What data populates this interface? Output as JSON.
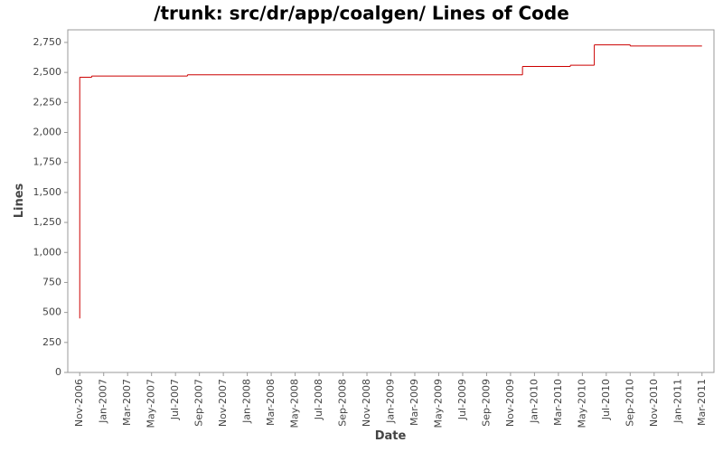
{
  "chart_data": {
    "type": "line",
    "step": "post",
    "color": "#cc0000",
    "title": "/trunk: src/dr/app/coalgen/ Lines of Code",
    "x_label": "Date",
    "y_label": "Lines",
    "x": [
      "2006-11",
      "2006-11",
      "2006-12",
      "2007-08",
      "2009-12",
      "2010-04",
      "2010-06",
      "2010-09",
      "2011-03"
    ],
    "values": [
      450,
      2460,
      2470,
      2480,
      2550,
      2560,
      2730,
      2720,
      2720
    ],
    "xlim": [
      "2006-10",
      "2011-04"
    ],
    "xticks": [
      {
        "value": "2006-11",
        "label": "Nov-2006"
      },
      {
        "value": "2007-01",
        "label": "Jan-2007"
      },
      {
        "value": "2007-03",
        "label": "Mar-2007"
      },
      {
        "value": "2007-05",
        "label": "May-2007"
      },
      {
        "value": "2007-07",
        "label": "Jul-2007"
      },
      {
        "value": "2007-09",
        "label": "Sep-2007"
      },
      {
        "value": "2007-11",
        "label": "Nov-2007"
      },
      {
        "value": "2008-01",
        "label": "Jan-2008"
      },
      {
        "value": "2008-03",
        "label": "Mar-2008"
      },
      {
        "value": "2008-05",
        "label": "May-2008"
      },
      {
        "value": "2008-07",
        "label": "Jul-2008"
      },
      {
        "value": "2008-09",
        "label": "Sep-2008"
      },
      {
        "value": "2008-11",
        "label": "Nov-2008"
      },
      {
        "value": "2009-01",
        "label": "Jan-2009"
      },
      {
        "value": "2009-03",
        "label": "Mar-2009"
      },
      {
        "value": "2009-05",
        "label": "May-2009"
      },
      {
        "value": "2009-07",
        "label": "Jul-2009"
      },
      {
        "value": "2009-09",
        "label": "Sep-2009"
      },
      {
        "value": "2009-11",
        "label": "Nov-2009"
      },
      {
        "value": "2010-01",
        "label": "Jan-2010"
      },
      {
        "value": "2010-03",
        "label": "Mar-2010"
      },
      {
        "value": "2010-05",
        "label": "May-2010"
      },
      {
        "value": "2010-07",
        "label": "Jul-2010"
      },
      {
        "value": "2010-09",
        "label": "Sep-2010"
      },
      {
        "value": "2010-11",
        "label": "Nov-2010"
      },
      {
        "value": "2011-01",
        "label": "Jan-2011"
      },
      {
        "value": "2011-03",
        "label": "Mar-2011"
      }
    ],
    "ylim": [
      0,
      2855
    ],
    "yticks": [
      0,
      250,
      500,
      750,
      {
        "value": 1000,
        "label": "1,000"
      },
      {
        "value": 1250,
        "label": "1,250"
      },
      {
        "value": 1500,
        "label": "1,500"
      },
      {
        "value": 1750,
        "label": "1,750"
      },
      {
        "value": 2000,
        "label": "2,000"
      },
      {
        "value": 2250,
        "label": "2,250"
      },
      {
        "value": 2500,
        "label": "2,500"
      },
      {
        "value": 2750,
        "label": "2,750"
      }
    ],
    "grid": false
  }
}
